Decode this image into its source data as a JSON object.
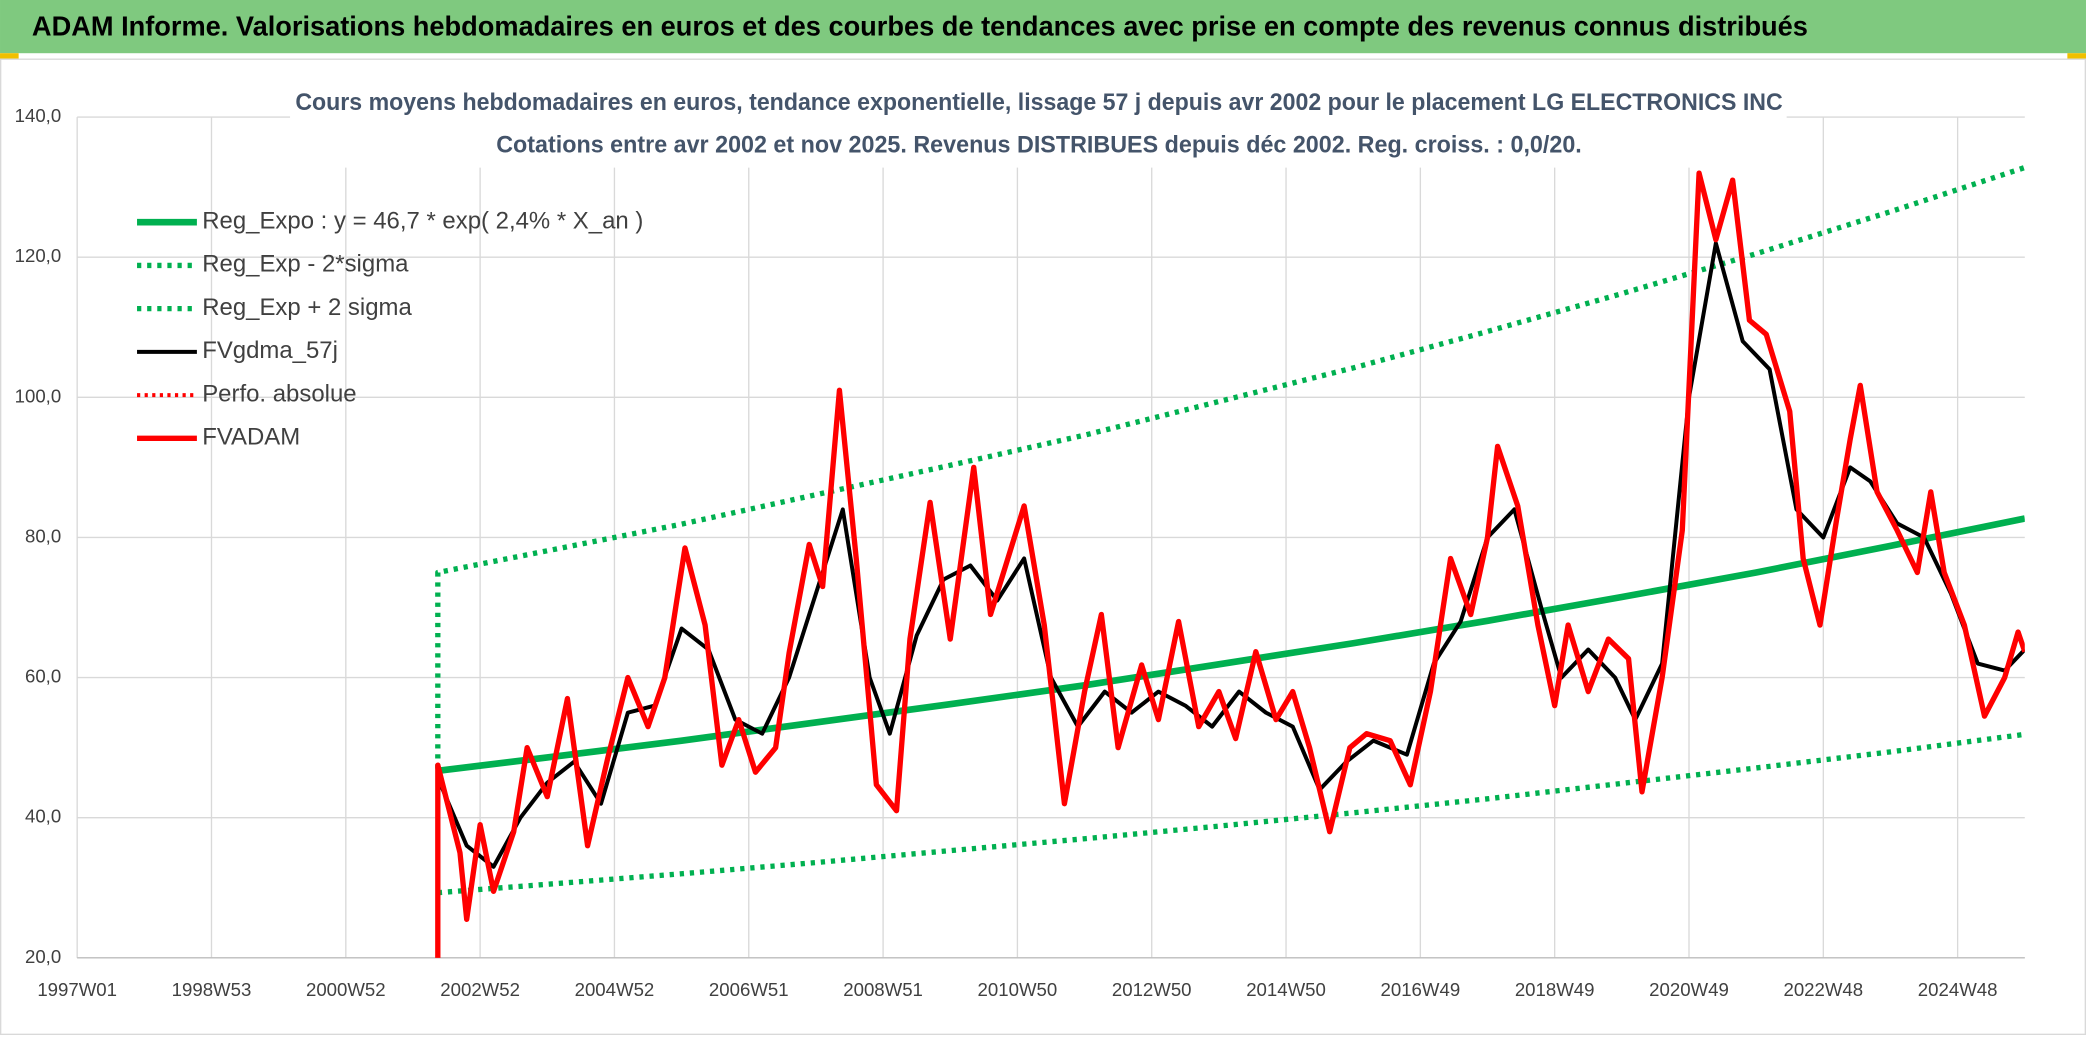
{
  "chart_data": {
    "type": "line",
    "header": "ADAM Informe. Valorisations hebdomadaires en euros et des courbes de tendances avec prise en compte des revenus connus distribués",
    "title": "Cours moyens hebdomadaires en euros, tendance exponentielle, lissage 57 j depuis avr 2002 pour le placement LG ELECTRONICS INC",
    "subtitle": "Cotations entre avr 2002 et nov 2025. Revenus DISTRIBUES depuis déc 2002. Reg. croiss. : 0,0/20.",
    "xlim": [
      1997,
      2026
    ],
    "xticks": [
      {
        "value": 1997,
        "label": "1997W01"
      },
      {
        "value": 1999,
        "label": "1998W53"
      },
      {
        "value": 2001,
        "label": "2000W52"
      },
      {
        "value": 2003,
        "label": "2002W52"
      },
      {
        "value": 2005,
        "label": "2004W52"
      },
      {
        "value": 2007,
        "label": "2006W51"
      },
      {
        "value": 2009,
        "label": "2008W51"
      },
      {
        "value": 2011,
        "label": "2010W50"
      },
      {
        "value": 2013,
        "label": "2012W50"
      },
      {
        "value": 2015,
        "label": "2014W50"
      },
      {
        "value": 2017,
        "label": "2016W49"
      },
      {
        "value": 2019,
        "label": "2018W49"
      },
      {
        "value": 2021,
        "label": "2020W49"
      },
      {
        "value": 2023,
        "label": "2022W48"
      },
      {
        "value": 2025,
        "label": "2024W48"
      }
    ],
    "ylim": [
      20,
      140
    ],
    "yticks": [
      {
        "value": 20,
        "label": "20,0"
      },
      {
        "value": 40,
        "label": "40,0"
      },
      {
        "value": 60,
        "label": "60,0"
      },
      {
        "value": 80,
        "label": "80,0"
      },
      {
        "value": 100,
        "label": "100,0"
      },
      {
        "value": 120,
        "label": "120,0"
      },
      {
        "value": 140,
        "label": "140,0"
      }
    ],
    "grid": true,
    "legend": "upper left",
    "series": [
      {
        "name": "Reg_Expo : y = 46,7 * exp( 2,4% *  X_an )",
        "color": "#00b050",
        "dash": "solid",
        "width": 5,
        "x": [
          2002.37,
          2004,
          2006,
          2008,
          2010,
          2012,
          2014,
          2016,
          2018,
          2020,
          2022,
          2024,
          2026
        ],
        "values": [
          46.7,
          48.6,
          51.0,
          53.6,
          56.2,
          58.9,
          61.9,
          64.9,
          68.1,
          71.5,
          75.0,
          78.8,
          82.7
        ]
      },
      {
        "name": "Reg_Exp - 2*sigma",
        "color": "#00b050",
        "dash": "dotted",
        "width": 4,
        "x": [
          2002.37,
          2004,
          2006,
          2008,
          2010,
          2012,
          2014,
          2016,
          2018,
          2020,
          2022,
          2024,
          2026
        ],
        "values": [
          29.3,
          30.5,
          32.0,
          33.6,
          35.3,
          37.0,
          38.8,
          40.7,
          42.7,
          44.9,
          47.1,
          49.4,
          51.9
        ]
      },
      {
        "name": "Reg_Exp + 2 sigma",
        "color": "#00b050",
        "dash": "dotted",
        "width": 4,
        "x": [
          2002.37,
          2002.37,
          2004,
          2006,
          2008,
          2010,
          2012,
          2014,
          2016,
          2018,
          2020,
          2022,
          2024,
          2026
        ],
        "values": [
          47,
          75,
          78.1,
          81.9,
          86.1,
          90.3,
          94.6,
          99.4,
          104.2,
          109.4,
          114.8,
          120.5,
          126.5,
          132.8
        ]
      },
      {
        "name": "FVgdma_57j",
        "color": "#000000",
        "dash": "solid",
        "width": 3,
        "x": [
          2002.4,
          2002.8,
          2003.2,
          2003.6,
          2004.0,
          2004.4,
          2004.8,
          2005.2,
          2005.6,
          2006.0,
          2006.4,
          2006.8,
          2007.2,
          2007.6,
          2008.0,
          2008.4,
          2008.8,
          2009.1,
          2009.5,
          2009.9,
          2010.3,
          2010.7,
          2011.1,
          2011.5,
          2011.9,
          2012.3,
          2012.7,
          2013.1,
          2013.5,
          2013.9,
          2014.3,
          2014.7,
          2015.1,
          2015.5,
          2015.9,
          2016.3,
          2016.8,
          2017.2,
          2017.6,
          2018.0,
          2018.4,
          2018.8,
          2019.1,
          2019.5,
          2019.9,
          2020.2,
          2020.6,
          2021.0,
          2021.4,
          2021.8,
          2022.2,
          2022.6,
          2023.0,
          2023.4,
          2023.7,
          2024.1,
          2024.5,
          2024.9,
          2025.3,
          2025.7,
          2026.0
        ],
        "values": [
          45,
          36,
          33,
          40,
          45,
          48,
          42,
          55,
          56,
          67,
          64,
          54,
          52,
          60,
          72,
          84,
          60,
          52,
          66,
          74,
          76,
          71,
          77,
          60,
          53,
          58,
          55,
          58,
          56,
          53,
          58,
          55,
          53,
          44,
          48,
          51,
          49,
          62,
          68,
          80,
          84,
          70,
          60,
          64,
          60,
          54,
          62,
          100,
          122,
          108,
          104,
          84,
          80,
          90,
          88,
          82,
          80,
          72,
          62,
          61,
          64
        ]
      },
      {
        "name": "Perfo. absolue",
        "color": "#ff0000",
        "dash": "dotted",
        "width": 3,
        "x": [],
        "values": []
      },
      {
        "name": "FVADAM",
        "color": "#ff0000",
        "dash": "solid",
        "width": 4,
        "x": [
          2002.37,
          2002.37,
          2002.7,
          2002.8,
          2003.0,
          2003.2,
          2003.5,
          2003.7,
          2004.0,
          2004.3,
          2004.6,
          2004.9,
          2005.2,
          2005.5,
          2005.75,
          2006.05,
          2006.35,
          2006.6,
          2006.85,
          2007.1,
          2007.4,
          2007.6,
          2007.9,
          2008.1,
          2008.35,
          2008.6,
          2008.9,
          2009.2,
          2009.4,
          2009.7,
          2010.0,
          2010.35,
          2010.6,
          2011.1,
          2011.4,
          2011.7,
          2012.0,
          2012.25,
          2012.5,
          2012.85,
          2013.1,
          2013.4,
          2013.7,
          2014.0,
          2014.25,
          2014.55,
          2014.85,
          2015.1,
          2015.35,
          2015.65,
          2015.95,
          2016.2,
          2016.55,
          2016.85,
          2017.15,
          2017.45,
          2017.75,
          2018.0,
          2018.15,
          2018.45,
          2018.75,
          2019.0,
          2019.2,
          2019.5,
          2019.8,
          2020.1,
          2020.3,
          2020.6,
          2020.9,
          2021.15,
          2021.4,
          2021.65,
          2021.9,
          2022.15,
          2022.5,
          2022.7,
          2022.95,
          2023.2,
          2023.4,
          2023.55,
          2023.8,
          2024.1,
          2024.4,
          2024.6,
          2024.8,
          2025.1,
          2025.4,
          2025.7,
          2025.9,
          2026.0
        ],
        "values": [
          20,
          47.5,
          35,
          25.5,
          39,
          29.5,
          38,
          50,
          43,
          57,
          36,
          48.5,
          60,
          53,
          60,
          78.5,
          67.5,
          47.5,
          54,
          46.5,
          50,
          63.5,
          79,
          73,
          101,
          77,
          44.7,
          41,
          65.5,
          85,
          65.5,
          90,
          69,
          84.5,
          67.5,
          42,
          58,
          69,
          50,
          61.8,
          54,
          68,
          53,
          58,
          51.3,
          63.7,
          54,
          58,
          50,
          38,
          50,
          52,
          51,
          44.7,
          58,
          77,
          69,
          80,
          93,
          84.5,
          67.5,
          56,
          67.5,
          58,
          65.5,
          62.7,
          43.7,
          60,
          81,
          132,
          122.5,
          131,
          111,
          109,
          98,
          77,
          67.5,
          82.7,
          94,
          101.7,
          86.5,
          81,
          75,
          86.5,
          75,
          67.5,
          54.5,
          60,
          66.5,
          63.7
        ]
      }
    ]
  }
}
